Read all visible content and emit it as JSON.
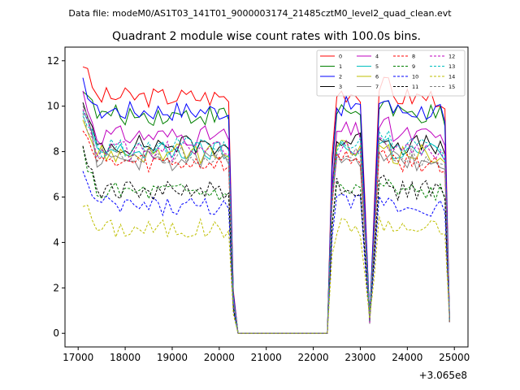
{
  "figure": {
    "suptitle": "Data file: modeM0/AS1T03_141T01_9000003174_21485cztM0_level2_quad_clean.evt"
  },
  "chart_data": {
    "type": "line",
    "title": "Quadrant 2 module wise count rates with 100.0s bins.",
    "xlabel": "",
    "ylabel": "",
    "x_offset_label": "+3.065e8",
    "xlim": [
      16720,
      25290
    ],
    "ylim": [
      -0.6,
      12.6
    ],
    "x_ticks": [
      17000,
      18000,
      19000,
      20000,
      21000,
      22000,
      23000,
      24000,
      25000
    ],
    "y_ticks": [
      0,
      2,
      4,
      6,
      8,
      10,
      12
    ],
    "grid": false,
    "legend_position": "upper-right",
    "legend_columns": 4,
    "x": [
      17100,
      17200,
      17300,
      17400,
      17500,
      17600,
      17700,
      17800,
      17900,
      18000,
      18100,
      18200,
      18300,
      18400,
      18500,
      18600,
      18700,
      18800,
      18900,
      19000,
      19100,
      19200,
      19300,
      19400,
      19500,
      19600,
      19700,
      19800,
      19900,
      20000,
      20100,
      20200,
      20300,
      20400,
      20500,
      20600,
      20700,
      20800,
      20900,
      21000,
      21100,
      21200,
      21300,
      21400,
      21500,
      21600,
      21700,
      21800,
      21900,
      22000,
      22100,
      22200,
      22300,
      22400,
      22500,
      22600,
      22700,
      22800,
      22900,
      23000,
      23100,
      23200,
      23300,
      23400,
      23500,
      23600,
      23700,
      23800,
      23900,
      24000,
      24100,
      24200,
      24300,
      24400,
      24500,
      24600,
      24700,
      24800,
      24900
    ],
    "series": [
      {
        "name": "0",
        "color": "#ff0000",
        "dash": "solid",
        "level": 10.4,
        "start": 11.9
      },
      {
        "name": "1",
        "color": "#008000",
        "dash": "solid",
        "level": 9.6,
        "start": 10.9
      },
      {
        "name": "2",
        "color": "#0000ff",
        "dash": "solid",
        "level": 9.8,
        "start": 11.0
      },
      {
        "name": "3",
        "color": "#000000",
        "dash": "solid",
        "level": 8.3,
        "start": 10.0
      },
      {
        "name": "4",
        "color": "#bf00bf",
        "dash": "solid",
        "level": 8.7,
        "start": 10.6
      },
      {
        "name": "5",
        "color": "#00bfbf",
        "dash": "solid",
        "level": 8.0,
        "start": 9.8
      },
      {
        "name": "6",
        "color": "#bfbf00",
        "dash": "solid",
        "level": 7.9,
        "start": 9.5
      },
      {
        "name": "7",
        "color": "#808080",
        "dash": "solid",
        "level": 7.6,
        "start": 10.2
      },
      {
        "name": "8",
        "color": "#ff0000",
        "dash": "dashed",
        "level": 7.5,
        "start": 9.2
      },
      {
        "name": "9",
        "color": "#008000",
        "dash": "dashed",
        "level": 6.2,
        "start": 8.0
      },
      {
        "name": "10",
        "color": "#0000ff",
        "dash": "dashed",
        "level": 5.6,
        "start": 7.0
      },
      {
        "name": "11",
        "color": "#000000",
        "dash": "dashed",
        "level": 6.3,
        "start": 8.2
      },
      {
        "name": "12",
        "color": "#bf00bf",
        "dash": "dashed",
        "level": 8.0,
        "start": 9.9
      },
      {
        "name": "13",
        "color": "#00bfbf",
        "dash": "dashed",
        "level": 8.2,
        "start": 9.7
      },
      {
        "name": "14",
        "color": "#bfbf00",
        "dash": "dashed",
        "level": 4.6,
        "start": 5.8
      },
      {
        "name": "15",
        "color": "#808080",
        "dash": "dashed",
        "level": 7.8,
        "start": 9.4
      }
    ]
  }
}
